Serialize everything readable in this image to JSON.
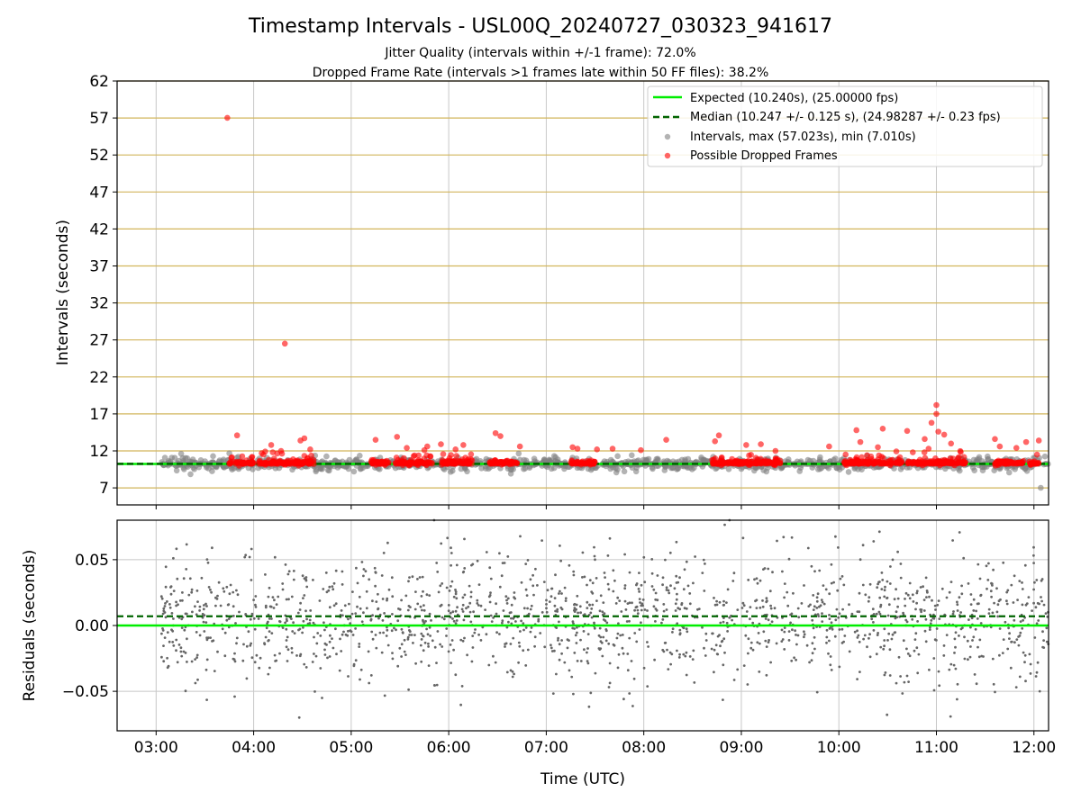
{
  "chart_data": [
    {
      "type": "scatter",
      "title": "Timestamp Intervals - USL00Q_20240727_030323_941617",
      "subtitle_lines": [
        "Jitter Quality (intervals within +/-1 frame): 72.0%",
        "Dropped Frame Rate (intervals >1 frames late within 50 FF files): 38.2%"
      ],
      "xlabel": "",
      "ylabel": "Intervals (seconds)",
      "x_unit": "hours UTC",
      "xlim": [
        2.6,
        12.15
      ],
      "ylim": [
        4.7,
        62
      ],
      "yticks": [
        7,
        12,
        17,
        22,
        27,
        32,
        37,
        42,
        47,
        52,
        57,
        62
      ],
      "xticks": [
        3,
        4,
        5,
        6,
        7,
        8,
        9,
        10,
        11,
        12
      ],
      "xtick_labels": [
        "03:00",
        "04:00",
        "05:00",
        "06:00",
        "07:00",
        "08:00",
        "09:00",
        "10:00",
        "11:00",
        "12:00"
      ],
      "expected_interval": 10.24,
      "median_interval": 10.247,
      "legend_position": "upper-right",
      "legend": [
        {
          "label": "Expected (10.240s), (25.00000 fps)",
          "kind": "line",
          "color": "#00ee00"
        },
        {
          "label": "Median (10.247 +/- 0.125 s), (24.98287 +/- 0.23 fps)",
          "kind": "dashed-line",
          "color": "#006400"
        },
        {
          "label": "Intervals, max (57.023s), min (7.010s)",
          "kind": "marker",
          "color": "#808080"
        },
        {
          "label": "Possible Dropped Frames",
          "kind": "marker",
          "color": "#ff0000"
        }
      ],
      "dropped_outliers": [
        {
          "x": 3.73,
          "y": 57.02
        },
        {
          "x": 4.32,
          "y": 26.5
        },
        {
          "x": 3.83,
          "y": 14.1
        },
        {
          "x": 4.18,
          "y": 12.8
        },
        {
          "x": 4.48,
          "y": 13.4
        },
        {
          "x": 4.52,
          "y": 13.7
        },
        {
          "x": 4.58,
          "y": 12.2
        },
        {
          "x": 5.25,
          "y": 13.5
        },
        {
          "x": 5.47,
          "y": 13.9
        },
        {
          "x": 5.57,
          "y": 12.4
        },
        {
          "x": 5.75,
          "y": 12.1
        },
        {
          "x": 5.78,
          "y": 12.6
        },
        {
          "x": 5.92,
          "y": 12.9
        },
        {
          "x": 6.15,
          "y": 12.8
        },
        {
          "x": 6.07,
          "y": 12.2
        },
        {
          "x": 6.48,
          "y": 14.4
        },
        {
          "x": 6.53,
          "y": 14.0
        },
        {
          "x": 6.73,
          "y": 12.6
        },
        {
          "x": 7.27,
          "y": 12.5
        },
        {
          "x": 7.32,
          "y": 12.3
        },
        {
          "x": 7.52,
          "y": 12.2
        },
        {
          "x": 7.68,
          "y": 12.3
        },
        {
          "x": 7.97,
          "y": 12.1
        },
        {
          "x": 8.23,
          "y": 13.5
        },
        {
          "x": 8.73,
          "y": 13.3
        },
        {
          "x": 8.77,
          "y": 14.1
        },
        {
          "x": 9.05,
          "y": 12.8
        },
        {
          "x": 9.2,
          "y": 12.9
        },
        {
          "x": 9.35,
          "y": 12.0
        },
        {
          "x": 9.9,
          "y": 12.6
        },
        {
          "x": 10.18,
          "y": 14.8
        },
        {
          "x": 10.22,
          "y": 13.2
        },
        {
          "x": 10.4,
          "y": 12.5
        },
        {
          "x": 10.45,
          "y": 15.0
        },
        {
          "x": 10.7,
          "y": 14.7
        },
        {
          "x": 10.88,
          "y": 13.6
        },
        {
          "x": 10.92,
          "y": 12.3
        },
        {
          "x": 10.95,
          "y": 15.8
        },
        {
          "x": 11.0,
          "y": 18.2
        },
        {
          "x": 11.0,
          "y": 17.0
        },
        {
          "x": 11.02,
          "y": 14.6
        },
        {
          "x": 11.08,
          "y": 14.2
        },
        {
          "x": 11.15,
          "y": 13.0
        },
        {
          "x": 11.6,
          "y": 13.6
        },
        {
          "x": 11.65,
          "y": 12.6
        },
        {
          "x": 11.82,
          "y": 12.4
        },
        {
          "x": 11.92,
          "y": 13.2
        },
        {
          "x": 12.05,
          "y": 13.4
        }
      ],
      "dropped_clusters": [
        {
          "x_range": [
            3.75,
            4.0
          ],
          "y_range": [
            10.0,
            11.3
          ]
        },
        {
          "x_range": [
            4.05,
            4.3
          ],
          "y_range": [
            10.0,
            12.0
          ]
        },
        {
          "x_range": [
            4.3,
            4.62
          ],
          "y_range": [
            10.0,
            11.5
          ]
        },
        {
          "x_range": [
            5.2,
            5.4
          ],
          "y_range": [
            10.0,
            10.8
          ]
        },
        {
          "x_range": [
            5.45,
            5.83
          ],
          "y_range": [
            10.0,
            11.5
          ]
        },
        {
          "x_range": [
            5.92,
            6.25
          ],
          "y_range": [
            10.0,
            11.6
          ]
        },
        {
          "x_range": [
            6.42,
            6.7
          ],
          "y_range": [
            10.0,
            10.8
          ]
        },
        {
          "x_range": [
            7.25,
            7.5
          ],
          "y_range": [
            10.0,
            10.8
          ]
        },
        {
          "x_range": [
            8.7,
            9.2
          ],
          "y_range": [
            10.0,
            11.5
          ]
        },
        {
          "x_range": [
            9.2,
            9.4
          ],
          "y_range": [
            10.0,
            11.0
          ]
        },
        {
          "x_range": [
            10.05,
            10.65
          ],
          "y_range": [
            10.0,
            12.0
          ]
        },
        {
          "x_range": [
            10.7,
            11.3
          ],
          "y_range": [
            10.0,
            12.0
          ]
        },
        {
          "x_range": [
            11.6,
            11.9
          ],
          "y_range": [
            10.0,
            10.8
          ]
        },
        {
          "x_range": [
            11.95,
            12.05
          ],
          "y_range": [
            10.0,
            11.5
          ]
        }
      ],
      "intervals_scatter_summary": {
        "x_range": [
          3.05,
          12.15
        ],
        "center": 10.24,
        "spread": [
          8.5,
          11.9
        ],
        "min": {
          "x": 12.07,
          "y": 7.01
        }
      }
    },
    {
      "type": "scatter",
      "title": "",
      "xlabel": "Time (UTC)",
      "ylabel": "Residuals (seconds)",
      "xlim": [
        2.6,
        12.15
      ],
      "ylim": [
        -0.08,
        0.08
      ],
      "yticks": [
        -0.05,
        0.0,
        0.05
      ],
      "ytick_labels": [
        "−0.05",
        "0.00",
        "0.05"
      ],
      "xticks": [
        3,
        4,
        5,
        6,
        7,
        8,
        9,
        10,
        11,
        12
      ],
      "xtick_labels": [
        "03:00",
        "04:00",
        "05:00",
        "06:00",
        "07:00",
        "08:00",
        "09:00",
        "10:00",
        "11:00",
        "12:00"
      ],
      "expected_residual": 0.0,
      "median_residual": 0.007,
      "residuals_summary": {
        "x_range": [
          3.05,
          12.15
        ],
        "center": 0.005,
        "typical_spread": [
          -0.04,
          0.05
        ],
        "extremes": [
          -0.08,
          0.08
        ]
      }
    }
  ],
  "colors": {
    "expected_line": "#00ee00",
    "median_line": "#006400",
    "intervals": "#808080",
    "dropped": "#ff0000",
    "hgrid_top": "#d2b55b",
    "vgrid": "#c8c8c8",
    "residual_points": "#666666"
  }
}
